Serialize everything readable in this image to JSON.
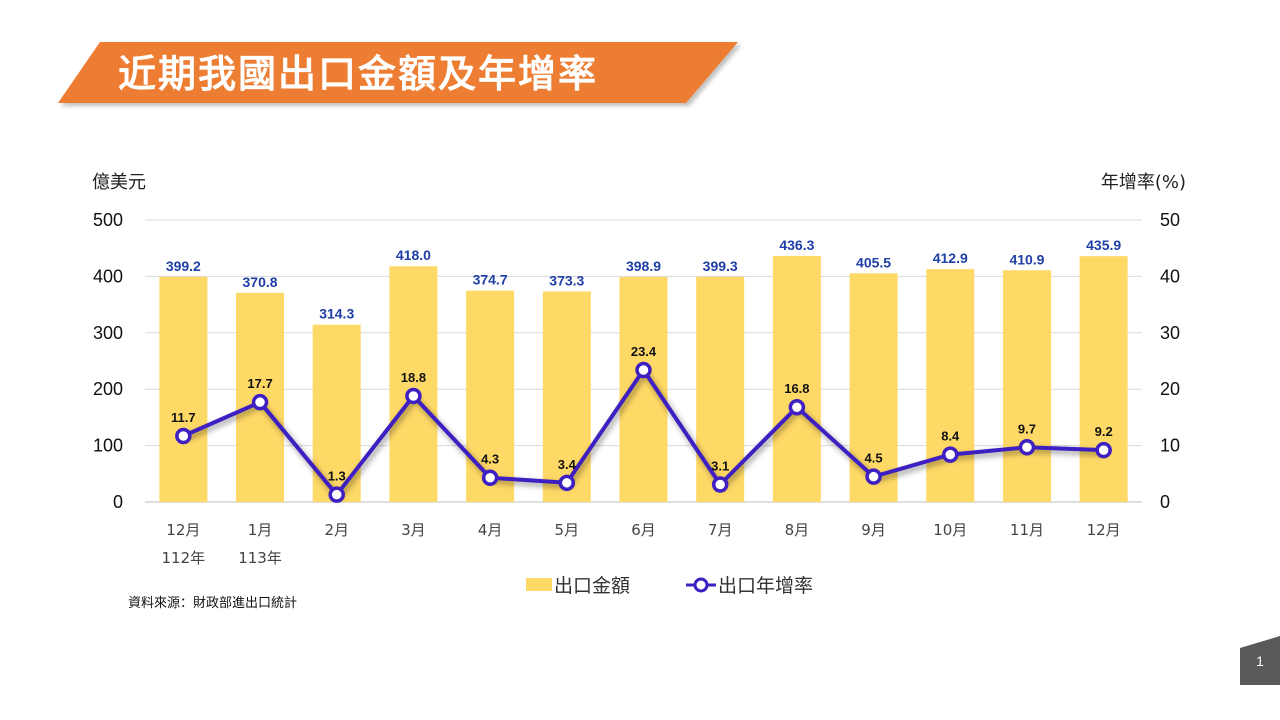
{
  "title": "近期我國出口金額及年增率",
  "source": "資料來源：財政部進出口統計",
  "page_number": "1",
  "colors": {
    "title_banner": "#ED7D31",
    "bar": "#FFD966",
    "line": "#3E1FC1",
    "bar_label": "#1F3EA6",
    "page_badge": "#595959"
  },
  "chart_data": {
    "type": "bar",
    "left_axis_label": "億美元",
    "right_axis_label": "年增率(%)",
    "categories": [
      "12月",
      "1月",
      "2月",
      "3月",
      "4月",
      "5月",
      "6月",
      "7月",
      "8月",
      "9月",
      "10月",
      "11月",
      "12月"
    ],
    "category_sublabels": [
      "112年",
      "113年",
      "",
      "",
      "",
      "",
      "",
      "",
      "",
      "",
      "",
      "",
      ""
    ],
    "ylim_left": [
      0,
      500
    ],
    "yticks_left": [
      "0",
      "100",
      "200",
      "300",
      "400",
      "500"
    ],
    "ylim_right": [
      0,
      50
    ],
    "yticks_right": [
      "0",
      "10",
      "20",
      "30",
      "40",
      "50"
    ],
    "grid": true,
    "legend_position": "bottom",
    "series": [
      {
        "name": "出口金額",
        "type": "bar",
        "axis": "left",
        "values": [
          399.2,
          370.8,
          314.3,
          418.0,
          374.7,
          373.3,
          398.9,
          399.3,
          436.3,
          405.5,
          412.9,
          410.9,
          435.9
        ],
        "labels": [
          "399.2",
          "370.8",
          "314.3",
          "418.0",
          "374.7",
          "373.3",
          "398.9",
          "399.3",
          "436.3",
          "405.5",
          "412.9",
          "410.9",
          "435.9"
        ]
      },
      {
        "name": "出口年增率",
        "type": "line",
        "axis": "right",
        "values": [
          11.7,
          17.7,
          1.3,
          18.8,
          4.3,
          3.4,
          23.4,
          3.1,
          16.8,
          4.5,
          8.4,
          9.7,
          9.2
        ],
        "labels": [
          "11.7",
          "17.7",
          "1.3",
          "18.8",
          "4.3",
          "3.4",
          "23.4",
          "3.1",
          "16.8",
          "4.5",
          "8.4",
          "9.7",
          "9.2"
        ]
      }
    ]
  }
}
